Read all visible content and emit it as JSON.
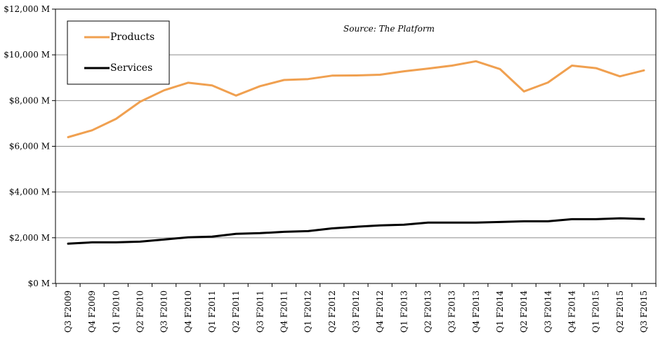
{
  "chart_data": {
    "type": "line",
    "annotation": "Source: The Platform",
    "categories": [
      "Q3 F2009",
      "Q4 F2009",
      "Q1 F2010",
      "Q2 F2010",
      "Q3 F2010",
      "Q4 F2010",
      "Q1 F2011",
      "Q2 F2011",
      "Q3 F2011",
      "Q4 F2011",
      "Q1 F2012",
      "Q2 F2012",
      "Q3 F2012",
      "Q4 F2012",
      "Q1 F2013",
      "Q2 F2013",
      "Q3 F2013",
      "Q4 F2013",
      "Q1 F2014",
      "Q2 F2014",
      "Q3 F2014",
      "Q4 F2014",
      "Q1 F2015",
      "Q2 F2015",
      "Q3 F2015"
    ],
    "ylim": [
      0,
      12000
    ],
    "yticks": [
      0,
      2000,
      4000,
      6000,
      8000,
      10000,
      12000
    ],
    "ytick_labels": [
      "$0 M",
      "$2,000 M",
      "$4,000 M",
      "$6,000 M",
      "$8,000 M",
      "$10,000 M",
      "$12,000 M"
    ],
    "grid": true,
    "legend": "top-left",
    "series": [
      {
        "name": "Products",
        "color": "#f0a050",
        "values": [
          6400,
          6700,
          7200,
          7950,
          8450,
          8780,
          8660,
          8220,
          8630,
          8900,
          8940,
          9090,
          9100,
          9130,
          9280,
          9400,
          9530,
          9720,
          9380,
          8400,
          8790,
          9530,
          9420,
          9060,
          9320
        ]
      },
      {
        "name": "Services",
        "color": "#000000",
        "values": [
          1740,
          1800,
          1800,
          1830,
          1920,
          2020,
          2050,
          2170,
          2200,
          2260,
          2290,
          2410,
          2480,
          2540,
          2570,
          2660,
          2660,
          2660,
          2690,
          2720,
          2720,
          2810,
          2810,
          2850,
          2820
        ]
      }
    ]
  }
}
